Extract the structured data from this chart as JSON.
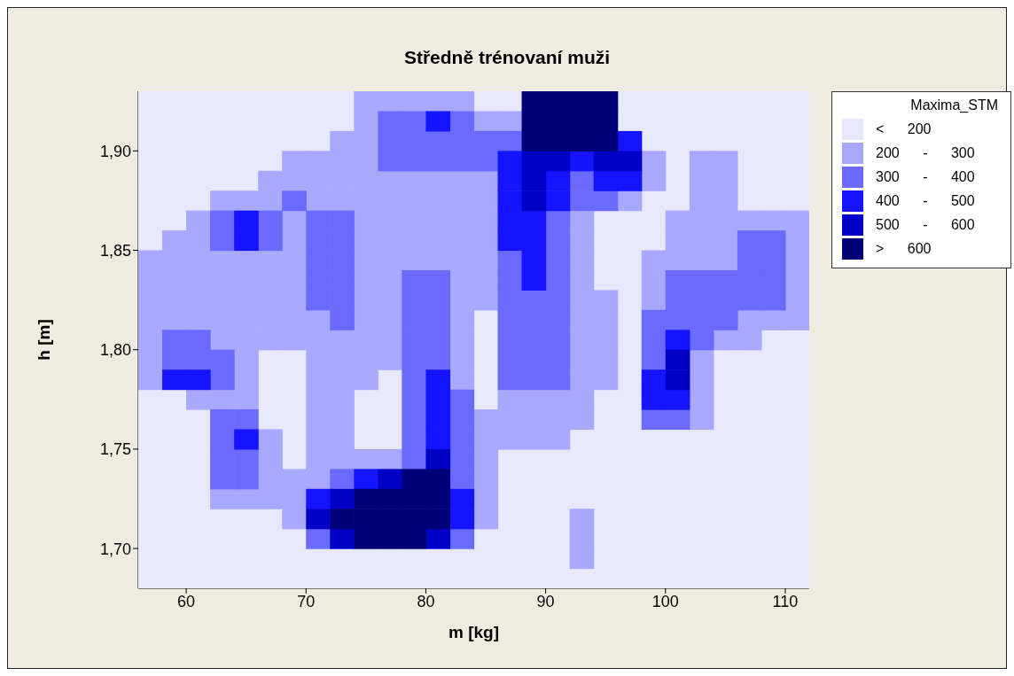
{
  "chart_data": {
    "type": "scatter",
    "title": "Středně trénovaní muži",
    "xlabel": "m [kg]",
    "ylabel": "h [m]",
    "legend_title": "Maxima_STM",
    "legend": "right",
    "marker": "square",
    "xlim": [
      56,
      112
    ],
    "xticks": [
      60,
      70,
      80,
      90,
      100,
      110
    ],
    "ylim": [
      1.68,
      1.93
    ],
    "yticks": [
      {
        "value": 1.7,
        "label": "1,70"
      },
      {
        "value": 1.75,
        "label": "1,75"
      },
      {
        "value": 1.8,
        "label": "1,80"
      },
      {
        "value": 1.85,
        "label": "1,85"
      },
      {
        "value": 1.9,
        "label": "1,90"
      }
    ],
    "series": [
      {
        "name": "< 200",
        "color": "#e8e8fc",
        "x": [
          57,
          59,
          61,
          63,
          65,
          67,
          69,
          71,
          73,
          85,
          87,
          97,
          99,
          101,
          103,
          105,
          107,
          109,
          111,
          57,
          59,
          61,
          63,
          65,
          67,
          69,
          71,
          73,
          97,
          99,
          101,
          103,
          105,
          107,
          109,
          111,
          57,
          59,
          61,
          63,
          65,
          67,
          69,
          71,
          99,
          101,
          103,
          105,
          107,
          109,
          111,
          57,
          59,
          61,
          63,
          65,
          67,
          101,
          107,
          109,
          111,
          57,
          59,
          61,
          63,
          65,
          101,
          107,
          109,
          111,
          57,
          59,
          61,
          99,
          101,
          107,
          109,
          111,
          57,
          59,
          95,
          97,
          99,
          57,
          95,
          97,
          99,
          95,
          97,
          95,
          97,
          97,
          85,
          97,
          85,
          97,
          109,
          111,
          67,
          69,
          85,
          97,
          105,
          107,
          109,
          111,
          67,
          69,
          77,
          85,
          97,
          105,
          107,
          109,
          111,
          57,
          59,
          67,
          69,
          75,
          77,
          85,
          95,
          97,
          105,
          107,
          109,
          111,
          57,
          59,
          61,
          67,
          69,
          75,
          77,
          95,
          97,
          105,
          107,
          109,
          111,
          57,
          59,
          61,
          69,
          75,
          77,
          93,
          95,
          97,
          99,
          101,
          103,
          105,
          107,
          109,
          111,
          57,
          59,
          61,
          69,
          87,
          89,
          91,
          93,
          95,
          97,
          99,
          101,
          103,
          105,
          107,
          109,
          111,
          57,
          59,
          61,
          87,
          89,
          91,
          93,
          95,
          97,
          99,
          101,
          103,
          105,
          107,
          109,
          111,
          57,
          59,
          61,
          87,
          89,
          91,
          93,
          95,
          97,
          99,
          101,
          103,
          105,
          107,
          109,
          111,
          57,
          59,
          61,
          63,
          65,
          67,
          87,
          89,
          91,
          95,
          97,
          99,
          101,
          103,
          105,
          107,
          109,
          111,
          57,
          59,
          61,
          63,
          65,
          67,
          69,
          85,
          87,
          89,
          91,
          95,
          97,
          99,
          101,
          103,
          105,
          107,
          109,
          111,
          57,
          59,
          61,
          63,
          65,
          67,
          69,
          71,
          73,
          75,
          77,
          79,
          81,
          83,
          85,
          87,
          89,
          91,
          95,
          97,
          99,
          101,
          103,
          105,
          107,
          109,
          111,
          57,
          59,
          61,
          63,
          65,
          67,
          69,
          71,
          73,
          75,
          77,
          79,
          81,
          83,
          85,
          87,
          89,
          91,
          93,
          95,
          97,
          99,
          101,
          103,
          105,
          107,
          109,
          111
        ],
        "values": [
          1.925,
          1.925,
          1.925,
          1.925,
          1.925,
          1.925,
          1.925,
          1.925,
          1.925,
          1.925,
          1.925,
          1.925,
          1.925,
          1.925,
          1.925,
          1.925,
          1.925,
          1.925,
          1.925,
          1.915,
          1.915,
          1.915,
          1.915,
          1.915,
          1.915,
          1.915,
          1.915,
          1.915,
          1.915,
          1.915,
          1.915,
          1.915,
          1.915,
          1.915,
          1.915,
          1.915,
          1.905,
          1.905,
          1.905,
          1.905,
          1.905,
          1.905,
          1.905,
          1.905,
          1.905,
          1.905,
          1.905,
          1.905,
          1.905,
          1.905,
          1.905,
          1.895,
          1.895,
          1.895,
          1.895,
          1.895,
          1.895,
          1.895,
          1.895,
          1.895,
          1.895,
          1.885,
          1.885,
          1.885,
          1.885,
          1.885,
          1.885,
          1.885,
          1.885,
          1.885,
          1.875,
          1.875,
          1.875,
          1.875,
          1.875,
          1.875,
          1.875,
          1.875,
          1.865,
          1.865,
          1.865,
          1.865,
          1.865,
          1.855,
          1.855,
          1.855,
          1.855,
          1.845,
          1.845,
          1.835,
          1.835,
          1.825,
          1.815,
          1.815,
          1.805,
          1.805,
          1.805,
          1.805,
          1.795,
          1.795,
          1.795,
          1.795,
          1.795,
          1.795,
          1.795,
          1.795,
          1.785,
          1.785,
          1.785,
          1.785,
          1.785,
          1.785,
          1.785,
          1.785,
          1.785,
          1.775,
          1.775,
          1.775,
          1.775,
          1.775,
          1.775,
          1.775,
          1.775,
          1.775,
          1.775,
          1.775,
          1.775,
          1.775,
          1.765,
          1.765,
          1.765,
          1.765,
          1.765,
          1.765,
          1.765,
          1.765,
          1.765,
          1.765,
          1.765,
          1.765,
          1.765,
          1.755,
          1.755,
          1.755,
          1.755,
          1.755,
          1.755,
          1.755,
          1.755,
          1.755,
          1.755,
          1.755,
          1.755,
          1.755,
          1.755,
          1.755,
          1.755,
          1.745,
          1.745,
          1.745,
          1.745,
          1.745,
          1.745,
          1.745,
          1.745,
          1.745,
          1.745,
          1.745,
          1.745,
          1.745,
          1.745,
          1.745,
          1.745,
          1.745,
          1.735,
          1.735,
          1.735,
          1.735,
          1.735,
          1.735,
          1.735,
          1.735,
          1.735,
          1.735,
          1.735,
          1.735,
          1.735,
          1.735,
          1.735,
          1.735,
          1.725,
          1.725,
          1.725,
          1.725,
          1.725,
          1.725,
          1.725,
          1.725,
          1.725,
          1.725,
          1.725,
          1.725,
          1.725,
          1.725,
          1.725,
          1.725,
          1.715,
          1.715,
          1.715,
          1.715,
          1.715,
          1.715,
          1.715,
          1.715,
          1.715,
          1.715,
          1.715,
          1.715,
          1.715,
          1.715,
          1.715,
          1.715,
          1.715,
          1.715,
          1.705,
          1.705,
          1.705,
          1.705,
          1.705,
          1.705,
          1.705,
          1.705,
          1.705,
          1.705,
          1.705,
          1.705,
          1.705,
          1.705,
          1.705,
          1.705,
          1.705,
          1.705,
          1.705,
          1.705,
          1.695,
          1.695,
          1.695,
          1.695,
          1.695,
          1.695,
          1.695,
          1.695,
          1.695,
          1.695,
          1.695,
          1.695,
          1.695,
          1.695,
          1.695,
          1.695,
          1.695,
          1.695,
          1.695,
          1.695,
          1.695,
          1.695,
          1.695,
          1.695,
          1.695,
          1.695,
          1.695,
          1.685,
          1.685,
          1.685,
          1.685,
          1.685,
          1.685,
          1.685,
          1.685,
          1.685,
          1.685,
          1.685,
          1.685,
          1.685,
          1.685,
          1.685,
          1.685,
          1.685,
          1.685,
          1.685,
          1.685,
          1.685,
          1.685,
          1.685,
          1.685,
          1.685,
          1.685,
          1.685,
          1.685
        ]
      },
      {
        "name": "200 - 300",
        "color": "#a8a8fe",
        "x": [
          75,
          77,
          79,
          81,
          83,
          75,
          85,
          87,
          73,
          75,
          69,
          71,
          73,
          75,
          99,
          103,
          105,
          67,
          69,
          71,
          73,
          75,
          77,
          79,
          81,
          83,
          85,
          99,
          103,
          105,
          63,
          65,
          67,
          71,
          73,
          75,
          77,
          79,
          81,
          83,
          85,
          97,
          103,
          105,
          61,
          69,
          75,
          77,
          79,
          81,
          83,
          85,
          93,
          101,
          103,
          105,
          107,
          109,
          111,
          59,
          61,
          69,
          75,
          77,
          79,
          81,
          83,
          85,
          93,
          101,
          103,
          105,
          111,
          57,
          59,
          61,
          63,
          65,
          67,
          69,
          75,
          77,
          79,
          81,
          83,
          85,
          93,
          99,
          101,
          103,
          105,
          111,
          57,
          59,
          61,
          63,
          65,
          67,
          69,
          75,
          77,
          83,
          85,
          93,
          99,
          111,
          57,
          59,
          61,
          63,
          65,
          67,
          69,
          75,
          77,
          83,
          85,
          93,
          95,
          99,
          111,
          57,
          59,
          61,
          63,
          65,
          67,
          69,
          71,
          75,
          77,
          83,
          93,
          95,
          107,
          109,
          111,
          57,
          63,
          65,
          67,
          69,
          71,
          73,
          75,
          77,
          83,
          93,
          95,
          105,
          107,
          57,
          65,
          71,
          73,
          75,
          77,
          83,
          93,
          95,
          103,
          57,
          65,
          71,
          73,
          75,
          83,
          93,
          95,
          103,
          61,
          63,
          65,
          71,
          73,
          87,
          89,
          91,
          93,
          103,
          71,
          73,
          85,
          87,
          89,
          91,
          93,
          103,
          67,
          71,
          73,
          85,
          87,
          89,
          91,
          67,
          71,
          73,
          75,
          77,
          85,
          67,
          69,
          71,
          85,
          63,
          65,
          67,
          69,
          85,
          69,
          85,
          93,
          93,
          93
        ],
        "values": [
          1.925,
          1.925,
          1.925,
          1.925,
          1.925,
          1.915,
          1.915,
          1.915,
          1.905,
          1.905,
          1.895,
          1.895,
          1.895,
          1.895,
          1.895,
          1.895,
          1.895,
          1.885,
          1.885,
          1.885,
          1.885,
          1.885,
          1.885,
          1.885,
          1.885,
          1.885,
          1.885,
          1.885,
          1.885,
          1.885,
          1.875,
          1.875,
          1.875,
          1.875,
          1.875,
          1.875,
          1.875,
          1.875,
          1.875,
          1.875,
          1.875,
          1.875,
          1.875,
          1.875,
          1.865,
          1.865,
          1.865,
          1.865,
          1.865,
          1.865,
          1.865,
          1.865,
          1.865,
          1.865,
          1.865,
          1.865,
          1.865,
          1.865,
          1.865,
          1.855,
          1.855,
          1.855,
          1.855,
          1.855,
          1.855,
          1.855,
          1.855,
          1.855,
          1.855,
          1.855,
          1.855,
          1.855,
          1.855,
          1.845,
          1.845,
          1.845,
          1.845,
          1.845,
          1.845,
          1.845,
          1.845,
          1.845,
          1.845,
          1.845,
          1.845,
          1.845,
          1.845,
          1.845,
          1.845,
          1.845,
          1.845,
          1.845,
          1.835,
          1.835,
          1.835,
          1.835,
          1.835,
          1.835,
          1.835,
          1.835,
          1.835,
          1.835,
          1.835,
          1.835,
          1.835,
          1.835,
          1.825,
          1.825,
          1.825,
          1.825,
          1.825,
          1.825,
          1.825,
          1.825,
          1.825,
          1.825,
          1.825,
          1.825,
          1.825,
          1.825,
          1.825,
          1.815,
          1.815,
          1.815,
          1.815,
          1.815,
          1.815,
          1.815,
          1.815,
          1.815,
          1.815,
          1.815,
          1.815,
          1.815,
          1.815,
          1.815,
          1.815,
          1.805,
          1.805,
          1.805,
          1.805,
          1.805,
          1.805,
          1.805,
          1.805,
          1.805,
          1.805,
          1.805,
          1.805,
          1.805,
          1.805,
          1.795,
          1.795,
          1.795,
          1.795,
          1.795,
          1.795,
          1.795,
          1.795,
          1.795,
          1.795,
          1.785,
          1.785,
          1.785,
          1.785,
          1.785,
          1.785,
          1.785,
          1.785,
          1.785,
          1.775,
          1.775,
          1.775,
          1.775,
          1.775,
          1.775,
          1.775,
          1.775,
          1.775,
          1.775,
          1.765,
          1.765,
          1.765,
          1.765,
          1.765,
          1.765,
          1.765,
          1.765,
          1.755,
          1.755,
          1.755,
          1.755,
          1.755,
          1.755,
          1.755,
          1.745,
          1.745,
          1.745,
          1.745,
          1.745,
          1.745,
          1.735,
          1.735,
          1.735,
          1.735,
          1.725,
          1.725,
          1.725,
          1.725,
          1.725,
          1.715,
          1.715,
          1.715,
          1.705,
          1.695
        ]
      },
      {
        "name": "300 - 400",
        "color": "#6a6afe",
        "x": [
          77,
          79,
          83,
          77,
          79,
          81,
          83,
          85,
          87,
          77,
          79,
          81,
          83,
          85,
          93,
          69,
          93,
          95,
          63,
          67,
          71,
          73,
          91,
          63,
          67,
          71,
          73,
          91,
          107,
          109,
          71,
          73,
          87,
          91,
          107,
          109,
          71,
          73,
          79,
          81,
          87,
          91,
          101,
          103,
          105,
          107,
          109,
          71,
          73,
          79,
          81,
          87,
          89,
          91,
          101,
          103,
          105,
          107,
          109,
          73,
          79,
          81,
          87,
          89,
          91,
          99,
          101,
          103,
          105,
          59,
          61,
          79,
          81,
          87,
          89,
          91,
          99,
          103,
          59,
          61,
          63,
          79,
          81,
          87,
          89,
          91,
          99,
          63,
          79,
          87,
          89,
          91,
          79,
          83,
          63,
          65,
          79,
          83,
          99,
          101,
          63,
          79,
          83,
          63,
          65,
          79,
          83,
          63,
          65,
          73,
          83,
          71,
          83
        ],
        "values": [
          1.915,
          1.915,
          1.915,
          1.905,
          1.905,
          1.905,
          1.905,
          1.905,
          1.905,
          1.895,
          1.895,
          1.895,
          1.895,
          1.895,
          1.885,
          1.875,
          1.875,
          1.875,
          1.865,
          1.865,
          1.865,
          1.865,
          1.865,
          1.855,
          1.855,
          1.855,
          1.855,
          1.855,
          1.855,
          1.855,
          1.845,
          1.845,
          1.845,
          1.845,
          1.845,
          1.845,
          1.835,
          1.835,
          1.835,
          1.835,
          1.835,
          1.835,
          1.835,
          1.835,
          1.835,
          1.835,
          1.835,
          1.825,
          1.825,
          1.825,
          1.825,
          1.825,
          1.825,
          1.825,
          1.825,
          1.825,
          1.825,
          1.825,
          1.825,
          1.815,
          1.815,
          1.815,
          1.815,
          1.815,
          1.815,
          1.815,
          1.815,
          1.815,
          1.815,
          1.805,
          1.805,
          1.805,
          1.805,
          1.805,
          1.805,
          1.805,
          1.805,
          1.805,
          1.795,
          1.795,
          1.795,
          1.795,
          1.795,
          1.795,
          1.795,
          1.795,
          1.795,
          1.785,
          1.785,
          1.785,
          1.785,
          1.785,
          1.775,
          1.775,
          1.765,
          1.765,
          1.765,
          1.765,
          1.765,
          1.765,
          1.755,
          1.755,
          1.755,
          1.745,
          1.745,
          1.745,
          1.745,
          1.735,
          1.735,
          1.735,
          1.735,
          1.705,
          1.705
        ]
      },
      {
        "name": "400 - 500",
        "color": "#1414fe",
        "x": [
          81,
          97,
          87,
          93,
          87,
          91,
          95,
          97,
          87,
          91,
          65,
          87,
          89,
          65,
          87,
          89,
          89,
          89,
          101,
          59,
          61,
          81,
          99,
          81,
          99,
          101,
          81,
          65,
          81,
          75,
          71,
          83,
          83
        ],
        "values": [
          1.915,
          1.905,
          1.895,
          1.895,
          1.885,
          1.885,
          1.885,
          1.885,
          1.875,
          1.875,
          1.865,
          1.865,
          1.865,
          1.855,
          1.855,
          1.855,
          1.845,
          1.835,
          1.805,
          1.785,
          1.785,
          1.785,
          1.785,
          1.775,
          1.775,
          1.775,
          1.765,
          1.755,
          1.755,
          1.735,
          1.725,
          1.725,
          1.715
        ]
      },
      {
        "name": "500 - 600",
        "color": "#0000c6",
        "x": [
          89,
          91,
          95,
          97,
          89,
          89,
          101,
          101,
          81,
          77,
          73,
          71,
          73,
          81
        ],
        "values": [
          1.895,
          1.895,
          1.895,
          1.895,
          1.885,
          1.875,
          1.795,
          1.785,
          1.745,
          1.735,
          1.725,
          1.715,
          1.705,
          1.705
        ]
      },
      {
        "name": "> 600",
        "color": "#000078",
        "x": [
          89,
          91,
          93,
          95,
          89,
          91,
          93,
          95,
          89,
          91,
          93,
          95,
          79,
          81,
          75,
          77,
          79,
          81,
          73,
          75,
          77,
          79,
          81,
          75,
          77,
          79
        ],
        "values": [
          1.925,
          1.925,
          1.925,
          1.925,
          1.915,
          1.915,
          1.915,
          1.915,
          1.905,
          1.905,
          1.905,
          1.905,
          1.735,
          1.735,
          1.725,
          1.725,
          1.725,
          1.725,
          1.715,
          1.715,
          1.715,
          1.715,
          1.715,
          1.705,
          1.705,
          1.705
        ]
      }
    ]
  }
}
